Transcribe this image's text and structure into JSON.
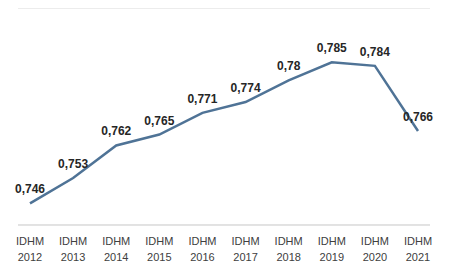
{
  "chart_data": {
    "type": "line",
    "categories": [
      "IDHM 2012",
      "IDHM 2013",
      "IDHM 2014",
      "IDHM 2015",
      "IDHM 2016",
      "IDHM 2017",
      "IDHM 2018",
      "IDHM 2019",
      "IDHM 2020",
      "IDHM 2021"
    ],
    "values": [
      0.746,
      0.753,
      0.762,
      0.765,
      0.771,
      0.774,
      0.78,
      0.785,
      0.784,
      0.766
    ],
    "value_labels": [
      "0,746",
      "0,753",
      "0,762",
      "0,765",
      "0,771",
      "0,774",
      "0,78",
      "0,785",
      "0,784",
      "0,766"
    ],
    "color": "#4f7396",
    "ylim": [
      0.74,
      0.8
    ],
    "yticks": [
      0.74,
      0.75,
      0.76,
      0.77,
      0.78,
      0.79,
      0.8
    ],
    "grid": true,
    "data_labels": true,
    "tick_labels": "x"
  }
}
